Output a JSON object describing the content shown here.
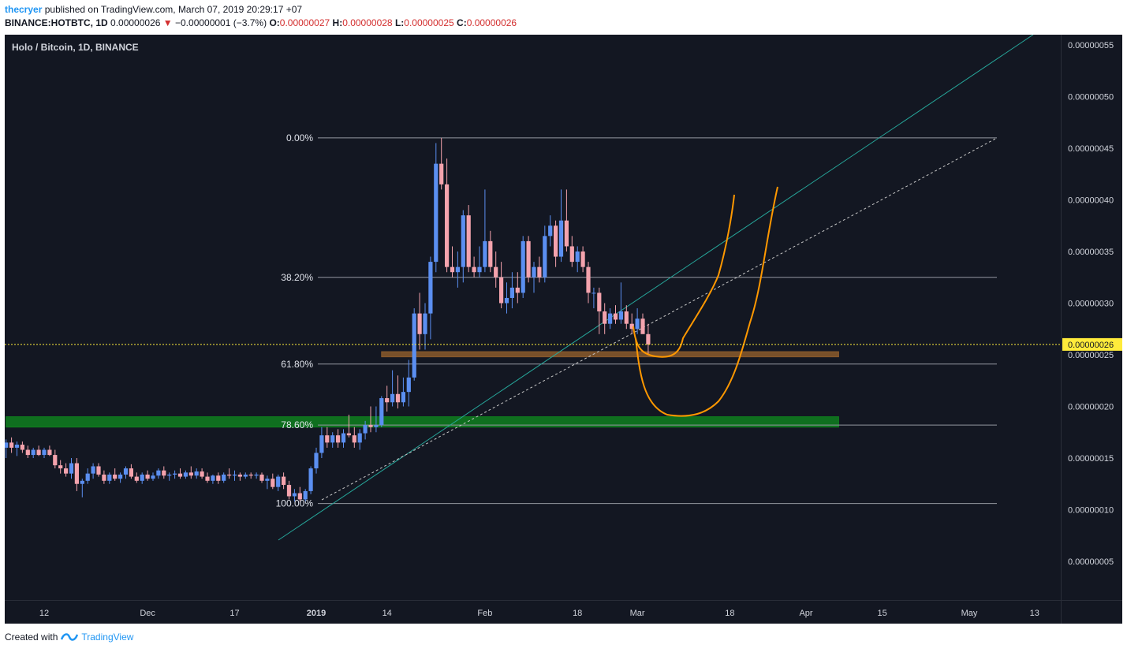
{
  "header": {
    "user": "thecryer",
    "published_text": "published on TradingView.com, March 07, 2019 20:29:17 +07",
    "symbol_line": "BINANCE:HOTBTC, 1D",
    "last": "0.00000026",
    "change_arrow": "▼",
    "change": "−0.00000001 (−3.7%)",
    "o_label": "O:",
    "o": "0.00000027",
    "h_label": "H:",
    "h": "0.00000028",
    "l_label": "L:",
    "l": "0.00000025",
    "c_label": "C:",
    "c": "0.00000026"
  },
  "footer": {
    "created_with": "Created with",
    "brand": "TradingView"
  },
  "chart_data": {
    "type": "candlestick",
    "title": "Holo / Bitcoin, 1D, BINANCE",
    "last_price": 2.6e-07,
    "last_price_label": "0.00000026",
    "ylim": [
      0,
      5.6e-07
    ],
    "yticks": [
      "0.00000055",
      "0.00000050",
      "0.00000045",
      "0.00000040",
      "0.00000035",
      "0.00000030",
      "0.00000025",
      "0.00000020",
      "0.00000015",
      "0.00000010",
      "0.00000005"
    ],
    "ytick_values": [
      5.5e-07,
      5e-07,
      4.5e-07,
      4e-07,
      3.5e-07,
      3e-07,
      2.5e-07,
      2e-07,
      1.5e-07,
      1e-07,
      5e-08
    ],
    "xticks": [
      {
        "label": "12",
        "date": "2018-11-12",
        "bold": false
      },
      {
        "label": "Dec",
        "date": "2018-12-01",
        "bold": false
      },
      {
        "label": "17",
        "date": "2018-12-17",
        "bold": false
      },
      {
        "label": "2019",
        "date": "2019-01-01",
        "bold": true
      },
      {
        "label": "14",
        "date": "2019-01-14",
        "bold": false
      },
      {
        "label": "Feb",
        "date": "2019-02-01",
        "bold": false
      },
      {
        "label": "18",
        "date": "2019-02-18",
        "bold": false
      },
      {
        "label": "Mar",
        "date": "2019-03-01",
        "bold": false
      },
      {
        "label": "18",
        "date": "2019-03-18",
        "bold": false
      },
      {
        "label": "Apr",
        "date": "2019-04-01",
        "bold": false
      },
      {
        "label": "15",
        "date": "2019-04-15",
        "bold": false
      },
      {
        "label": "May",
        "date": "2019-05-01",
        "bold": false
      },
      {
        "label": "13",
        "date": "2019-05-13",
        "bold": false
      }
    ],
    "fib_levels": [
      {
        "label": "0.00%",
        "price": 4.6e-07
      },
      {
        "label": "38.20%",
        "price": 3.25e-07
      },
      {
        "label": "61.80%",
        "price": 2.41e-07
      },
      {
        "label": "78.60%",
        "price": 1.82e-07
      },
      {
        "label": "100.00%",
        "price": 1.06e-07
      }
    ],
    "zones": [
      {
        "name": "resistance",
        "color": "#8b5a2b",
        "from": "2019-01-13",
        "to": "2019-04-07",
        "low": 2.48e-07,
        "high": 2.53e-07
      },
      {
        "name": "support",
        "color": "#0f7f1f",
        "from": "2018-11-05",
        "to": "2019-04-07",
        "low": 1.8e-07,
        "high": 1.9e-07
      }
    ],
    "colors": {
      "up": "#5b8ff1",
      "down": "#f4a3ad",
      "background": "#131722",
      "fib_line": "#9598a1",
      "drawing": "#ff9800",
      "trend": "#26a69a",
      "last_price_line": "#ffeb3b"
    },
    "candles_start": "2018-11-05",
    "candles": [
      [
        1.6e-07,
        1.68e-07,
        1.5e-07,
        1.65e-07
      ],
      [
        1.65e-07,
        1.7e-07,
        1.55e-07,
        1.6e-07
      ],
      [
        1.6e-07,
        1.66e-07,
        1.52e-07,
        1.63e-07
      ],
      [
        1.63e-07,
        1.66e-07,
        1.55e-07,
        1.58e-07
      ],
      [
        1.58e-07,
        1.62e-07,
        1.5e-07,
        1.53e-07
      ],
      [
        1.53e-07,
        1.6e-07,
        1.5e-07,
        1.58e-07
      ],
      [
        1.58e-07,
        1.62e-07,
        1.52e-07,
        1.53e-07
      ],
      [
        1.53e-07,
        1.6e-07,
        1.5e-07,
        1.58e-07
      ],
      [
        1.58e-07,
        1.62e-07,
        1.52e-07,
        1.53e-07
      ],
      [
        1.53e-07,
        1.58e-07,
        1.4e-07,
        1.43e-07
      ],
      [
        1.43e-07,
        1.48e-07,
        1.35e-07,
        1.4e-07
      ],
      [
        1.4e-07,
        1.45e-07,
        1.32e-07,
        1.35e-07
      ],
      [
        1.35e-07,
        1.5e-07,
        1.3e-07,
        1.45e-07
      ],
      [
        1.45e-07,
        1.5e-07,
        1.18e-07,
        1.25e-07
      ],
      [
        1.25e-07,
        1.3e-07,
        1.12e-07,
        1.28e-07
      ],
      [
        1.28e-07,
        1.4e-07,
        1.25e-07,
        1.35e-07
      ],
      [
        1.35e-07,
        1.45e-07,
        1.3e-07,
        1.42e-07
      ],
      [
        1.42e-07,
        1.45e-07,
        1.32e-07,
        1.34e-07
      ],
      [
        1.34e-07,
        1.38e-07,
        1.25e-07,
        1.28e-07
      ],
      [
        1.28e-07,
        1.36e-07,
        1.25e-07,
        1.34e-07
      ],
      [
        1.34e-07,
        1.4e-07,
        1.28e-07,
        1.3e-07
      ],
      [
        1.3e-07,
        1.36e-07,
        1.26e-07,
        1.34e-07
      ],
      [
        1.34e-07,
        1.42e-07,
        1.3e-07,
        1.4e-07
      ],
      [
        1.4e-07,
        1.44e-07,
        1.3e-07,
        1.32e-07
      ],
      [
        1.32e-07,
        1.36e-07,
        1.26e-07,
        1.28e-07
      ],
      [
        1.28e-07,
        1.36e-07,
        1.25e-07,
        1.34e-07
      ],
      [
        1.34e-07,
        1.38e-07,
        1.28e-07,
        1.3e-07
      ],
      [
        1.3e-07,
        1.36e-07,
        1.28e-07,
        1.33e-07
      ],
      [
        1.33e-07,
        1.4e-07,
        1.3e-07,
        1.38e-07
      ],
      [
        1.38e-07,
        1.42e-07,
        1.3e-07,
        1.33e-07
      ],
      [
        1.33e-07,
        1.36e-07,
        1.28e-07,
        1.34e-07
      ],
      [
        1.34e-07,
        1.38e-07,
        1.3e-07,
        1.35e-07
      ],
      [
        1.35e-07,
        1.4e-07,
        1.3e-07,
        1.32e-07
      ],
      [
        1.32e-07,
        1.38e-07,
        1.3e-07,
        1.36e-07
      ],
      [
        1.36e-07,
        1.42e-07,
        1.3e-07,
        1.33e-07
      ],
      [
        1.33e-07,
        1.4e-07,
        1.3e-07,
        1.37e-07
      ],
      [
        1.37e-07,
        1.4e-07,
        1.3e-07,
        1.32e-07
      ],
      [
        1.32e-07,
        1.36e-07,
        1.26e-07,
        1.28e-07
      ],
      [
        1.28e-07,
        1.34e-07,
        1.25e-07,
        1.33e-07
      ],
      [
        1.33e-07,
        1.36e-07,
        1.25e-07,
        1.28e-07
      ],
      [
        1.28e-07,
        1.36e-07,
        1.26e-07,
        1.34e-07
      ],
      [
        1.34e-07,
        1.4e-07,
        1.3e-07,
        1.33e-07
      ],
      [
        1.33e-07,
        1.38e-07,
        1.28e-07,
        1.34e-07
      ],
      [
        1.34e-07,
        1.36e-07,
        1.28e-07,
        1.32e-07
      ],
      [
        1.32e-07,
        1.36e-07,
        1.3e-07,
        1.34e-07
      ],
      [
        1.34e-07,
        1.36e-07,
        1.3e-07,
        1.33e-07
      ],
      [
        1.33e-07,
        1.36e-07,
        1.3e-07,
        1.34e-07
      ],
      [
        1.34e-07,
        1.36e-07,
        1.26e-07,
        1.28e-07
      ],
      [
        1.28e-07,
        1.33e-07,
        1.2e-07,
        1.3e-07
      ],
      [
        1.3e-07,
        1.35e-07,
        1.2e-07,
        1.22e-07
      ],
      [
        1.22e-07,
        1.34e-07,
        1.18e-07,
        1.32e-07
      ],
      [
        1.32e-07,
        1.36e-07,
        1.2e-07,
        1.24e-07
      ],
      [
        1.24e-07,
        1.28e-07,
        1.1e-07,
        1.13e-07
      ],
      [
        1.13e-07,
        1.2e-07,
        1.08e-07,
        1.16e-07
      ],
      [
        1.16e-07,
        1.22e-07,
        1.08e-07,
        1.1e-07
      ],
      [
        1.1e-07,
        1.2e-07,
        1.08e-07,
        1.18e-07
      ],
      [
        1.18e-07,
        1.42e-07,
        1.15e-07,
        1.4e-07
      ],
      [
        1.4e-07,
        1.6e-07,
        1.35e-07,
        1.55e-07
      ],
      [
        1.55e-07,
        1.8e-07,
        1.5e-07,
        1.72e-07
      ],
      [
        1.72e-07,
        1.8e-07,
        1.6e-07,
        1.65e-07
      ],
      [
        1.65e-07,
        1.75e-07,
        1.6e-07,
        1.72e-07
      ],
      [
        1.72e-07,
        1.78e-07,
        1.6e-07,
        1.65e-07
      ],
      [
        1.65e-07,
        1.78e-07,
        1.6e-07,
        1.74e-07
      ],
      [
        1.74e-07,
        1.92e-07,
        1.7e-07,
        1.72e-07
      ],
      [
        1.72e-07,
        1.8e-07,
        1.6e-07,
        1.65e-07
      ],
      [
        1.65e-07,
        1.78e-07,
        1.58e-07,
        1.74e-07
      ],
      [
        1.74e-07,
        1.86e-07,
        1.68e-07,
        1.82e-07
      ],
      [
        1.82e-07,
        2e-07,
        1.75e-07,
        1.8e-07
      ],
      [
        1.8e-07,
        2e-07,
        1.75e-07,
        1.82e-07
      ],
      [
        1.82e-07,
        2.1e-07,
        1.8e-07,
        2.08e-07
      ],
      [
        2.08e-07,
        2.2e-07,
        1.95e-07,
        2.04e-07
      ],
      [
        2.04e-07,
        2.35e-07,
        2e-07,
        2.12e-07
      ],
      [
        2.12e-07,
        2.3e-07,
        1.98e-07,
        2.04e-07
      ],
      [
        2.04e-07,
        2.28e-07,
        2e-07,
        2.14e-07
      ],
      [
        2.14e-07,
        2.45e-07,
        2e-07,
        2.28e-07
      ],
      [
        2.28e-07,
        2.95e-07,
        2.25e-07,
        2.9e-07
      ],
      [
        2.9e-07,
        3.1e-07,
        2.55e-07,
        2.7e-07
      ],
      [
        2.7e-07,
        3e-07,
        2.55e-07,
        2.9e-07
      ],
      [
        2.9e-07,
        3.45e-07,
        2.65e-07,
        3.4e-07
      ],
      [
        3.4e-07,
        4.55e-07,
        3.3e-07,
        4.35e-07
      ],
      [
        4.35e-07,
        4.6e-07,
        4.1e-07,
        4.15e-07
      ],
      [
        4.15e-07,
        4.4e-07,
        3.3e-07,
        3.35e-07
      ],
      [
        3.35e-07,
        3.55e-07,
        3.25e-07,
        3.3e-07
      ],
      [
        3.3e-07,
        3.5e-07,
        3.15e-07,
        3.35e-07
      ],
      [
        3.35e-07,
        3.9e-07,
        3.2e-07,
        3.85e-07
      ],
      [
        3.85e-07,
        3.95e-07,
        3.3e-07,
        3.35e-07
      ],
      [
        3.35e-07,
        3.45e-07,
        3.25e-07,
        3.3e-07
      ],
      [
        3.3e-07,
        3.55e-07,
        3.25e-07,
        3.35e-07
      ],
      [
        3.35e-07,
        4.1e-07,
        3.3e-07,
        3.6e-07
      ],
      [
        3.6e-07,
        3.7e-07,
        3.3e-07,
        3.35e-07
      ],
      [
        3.35e-07,
        3.5e-07,
        3.15e-07,
        3.25e-07
      ],
      [
        3.25e-07,
        3.4e-07,
        2.95e-07,
        3e-07
      ],
      [
        3e-07,
        3.2e-07,
        2.9e-07,
        3.05e-07
      ],
      [
        3.05e-07,
        3.3e-07,
        2.95e-07,
        3.15e-07
      ],
      [
        3.15e-07,
        3.3e-07,
        3e-07,
        3.1e-07
      ],
      [
        3.1e-07,
        3.65e-07,
        3.05e-07,
        3.6e-07
      ],
      [
        3.6e-07,
        3.65e-07,
        3.2e-07,
        3.25e-07
      ],
      [
        3.25e-07,
        3.4e-07,
        3.1e-07,
        3.35e-07
      ],
      [
        3.35e-07,
        3.45e-07,
        3.2e-07,
        3.25e-07
      ],
      [
        3.25e-07,
        3.75e-07,
        3.2e-07,
        3.65e-07
      ],
      [
        3.65e-07,
        3.85e-07,
        3.55e-07,
        3.75e-07
      ],
      [
        3.75e-07,
        3.8e-07,
        3.35e-07,
        3.45e-07
      ],
      [
        3.45e-07,
        4.1e-07,
        3.4e-07,
        3.8e-07
      ],
      [
        3.8e-07,
        4.1e-07,
        3.5e-07,
        3.55e-07
      ],
      [
        3.55e-07,
        3.65e-07,
        3.35e-07,
        3.4e-07
      ],
      [
        3.4e-07,
        3.55e-07,
        3.3e-07,
        3.5e-07
      ],
      [
        3.5e-07,
        3.55e-07,
        3.3e-07,
        3.35e-07
      ],
      [
        3.35e-07,
        3.4e-07,
        3e-07,
        3.1e-07
      ],
      [
        3.1e-07,
        3.15e-07,
        2.95e-07,
        3.1e-07
      ],
      [
        3.1e-07,
        3.15e-07,
        2.7e-07,
        2.92e-07
      ],
      [
        2.92e-07,
        3e-07,
        2.7e-07,
        2.8e-07
      ],
      [
        2.8e-07,
        2.95e-07,
        2.75e-07,
        2.9e-07
      ],
      [
        2.9e-07,
        2.98e-07,
        2.8e-07,
        2.84e-07
      ],
      [
        2.84e-07,
        3.2e-07,
        2.8e-07,
        2.92e-07
      ],
      [
        2.92e-07,
        2.98e-07,
        2.75e-07,
        2.8e-07
      ],
      [
        2.8e-07,
        2.9e-07,
        2.7e-07,
        2.75e-07
      ],
      [
        2.75e-07,
        2.95e-07,
        2.7e-07,
        2.85e-07
      ],
      [
        2.85e-07,
        2.9e-07,
        2.75e-07,
        2.7e-07
      ],
      [
        2.7e-07,
        2.8e-07,
        2.5e-07,
        2.6e-07
      ]
    ]
  }
}
